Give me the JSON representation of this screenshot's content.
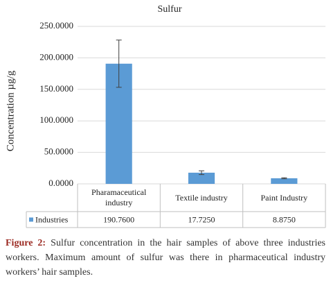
{
  "chart_data": {
    "type": "bar",
    "title": "Sulfur",
    "y_label": "Concentration µg/g",
    "categories": [
      "Pharamaceutical industry",
      "Textile industry",
      "Paint Industry"
    ],
    "series": [
      {
        "name": "Industries",
        "color": "#5b9bd5",
        "values": [
          190.76,
          17.725,
          8.875
        ],
        "value_labels": [
          "190.7600",
          "17.7250",
          "8.8750"
        ],
        "errors": [
          37.5,
          3,
          0.8
        ]
      }
    ],
    "ylim": [
      0,
      250
    ],
    "yticks": [
      {
        "value": 0,
        "label": "0.0000"
      },
      {
        "value": 50,
        "label": "50.0000"
      },
      {
        "value": 100,
        "label": "100.0000"
      },
      {
        "value": 150,
        "label": "150.0000"
      },
      {
        "value": 200,
        "label": "200.0000"
      },
      {
        "value": 250,
        "label": "250.0000"
      }
    ],
    "grid": true
  },
  "caption": {
    "label": "Figure 2:",
    "text": "Sulfur concentration in the hair samples of above three industries workers. Maximum amount of sulfur was there in pharmaceutical industry workers’ hair samples."
  }
}
